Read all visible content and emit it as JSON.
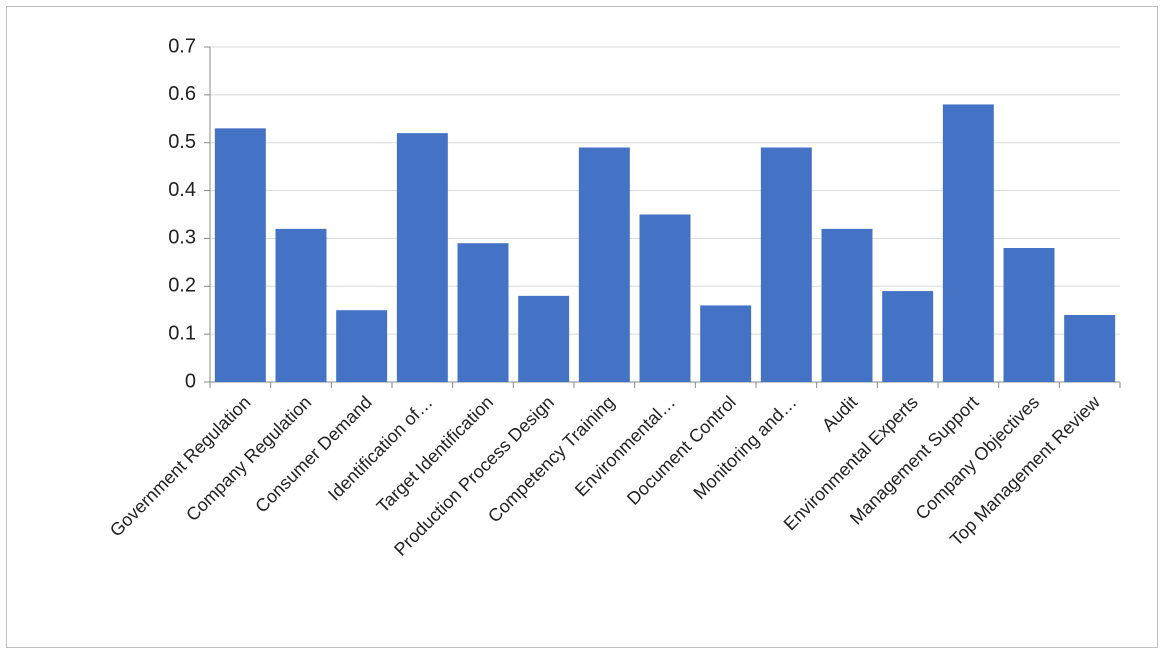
{
  "chart_data": {
    "type": "bar",
    "categories": [
      "Government Regulation",
      "Company Regulation",
      "Consumer Demand",
      "Identification of…",
      "Target Identification",
      "Production Process Design",
      "Competency Training",
      "Environmental…",
      "Document Control",
      "Monitoring and…",
      "Audit",
      "Environmental Experts",
      "Management Support",
      "Company Objectives",
      "Top Management Review"
    ],
    "values": [
      0.53,
      0.32,
      0.15,
      0.52,
      0.29,
      0.18,
      0.49,
      0.35,
      0.16,
      0.49,
      0.32,
      0.19,
      0.58,
      0.28,
      0.14
    ],
    "color": "#4472c4",
    "ylim": [
      0,
      0.7
    ],
    "yticks": [
      0,
      0.1,
      0.2,
      0.3,
      0.4,
      0.5,
      0.6,
      0.7
    ],
    "grid": true
  }
}
